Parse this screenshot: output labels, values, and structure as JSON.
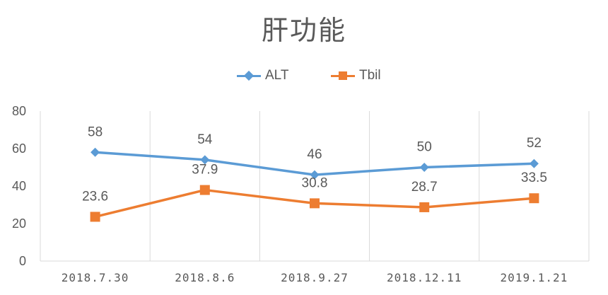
{
  "chart_data": {
    "type": "line",
    "title": "肝功能",
    "categories": [
      "2018.7.30",
      "2018.8.6",
      "2018.9.27",
      "2018.12.11",
      "2019.1.21"
    ],
    "series": [
      {
        "name": "ALT",
        "values": [
          58,
          54,
          46,
          50,
          52
        ],
        "labels": [
          "58",
          "54",
          "46",
          "50",
          "52"
        ],
        "color": "#5B9BD5",
        "marker": "diamond"
      },
      {
        "name": "Tbil",
        "values": [
          23.6,
          37.9,
          30.8,
          28.7,
          33.5
        ],
        "labels": [
          "23.6",
          "37.9",
          "30.8",
          "28.7",
          "33.5"
        ],
        "color": "#ED7D31",
        "marker": "square"
      }
    ],
    "yticks": [
      "0",
      "20",
      "40",
      "60",
      "80"
    ],
    "ylim": [
      0,
      80
    ],
    "grid": "vertical category separators",
    "legend_position": "top",
    "data_labels": "above points"
  }
}
